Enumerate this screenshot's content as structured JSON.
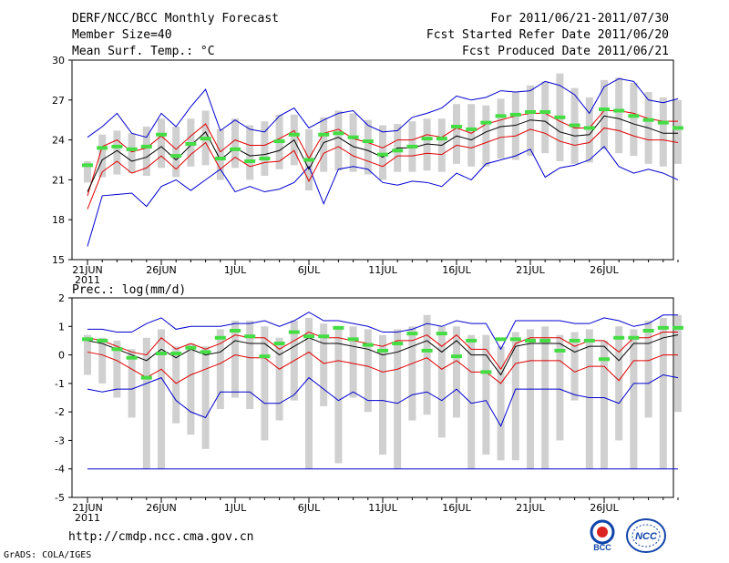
{
  "header": {
    "title": "DERF/NCC/BCC Monthly Forecast",
    "member_size": "Member Size=40",
    "variable": "Mean Surf. Temp.: °C",
    "period": "For 2011/06/21-2011/07/30",
    "started": "Fcst Started Refer Date 2011/06/20",
    "produced": "Fcst Produced Date 2011/06/21"
  },
  "footer": {
    "url": "http://cmdp.ncc.cma.gov.cn",
    "credit": "GrADS: COLA/IGES",
    "logo_left_text": "BCC",
    "logo_right_text": "NCC"
  },
  "colors": {
    "envelope": "#0000d0",
    "spread": "#e00000",
    "mean": "#000000",
    "box": "#d0d0d0",
    "observed": "#44dd44"
  },
  "chart_data": [
    {
      "type": "line",
      "name": "temperature",
      "title": "Mean Surf. Temp.: °C",
      "ylim": [
        15,
        30
      ],
      "yticks": [
        15,
        18,
        21,
        24,
        27,
        30
      ],
      "x_tick_labels": [
        {
          "day": 0,
          "label": "21JUN"
        },
        {
          "day": 5,
          "label": "26JUN"
        },
        {
          "day": 10,
          "label": "1JUL"
        },
        {
          "day": 15,
          "label": "6JUL"
        },
        {
          "day": 20,
          "label": "11JUL"
        },
        {
          "day": 25,
          "label": "16JUL"
        },
        {
          "day": 30,
          "label": "21JUL"
        },
        {
          "day": 35,
          "label": "26JUL"
        }
      ],
      "year_label": "2011",
      "series": [
        {
          "name": "max",
          "values": [
            16,
            19.8,
            19.9,
            20,
            19,
            20.5,
            21,
            20.2,
            21,
            21.8,
            20.1,
            20.5,
            20.1,
            20.3,
            20.8,
            22,
            19.2,
            21.8,
            22,
            21.8,
            20.8,
            20.6,
            20.9,
            20.8,
            20.5,
            21.5,
            21,
            22.2,
            22.5,
            22.8,
            23.3,
            21.2,
            21.9,
            22.1,
            22.5,
            23.5,
            22,
            21.5,
            21.8,
            21.5,
            21
          ]
        },
        {
          "name": "max_top",
          "values": [
            24.2,
            25,
            26,
            24.5,
            24.2,
            26,
            25,
            26.5,
            27.8,
            24.7,
            25.5,
            24.8,
            24.6,
            25.8,
            26.4,
            24.9,
            25.5,
            26,
            26.2,
            25.1,
            24.6,
            24.7,
            25.7,
            26,
            26.4,
            27.3,
            27,
            27.2,
            27.7,
            27.6,
            27.7,
            28.4,
            28.1,
            27.4,
            26,
            28,
            28.6,
            28.4,
            27,
            26.8,
            27.1
          ]
        },
        {
          "name": "upper",
          "values": [
            19.8,
            23.5,
            24,
            23.1,
            23.4,
            24.3,
            23.3,
            24.3,
            25.2,
            23.1,
            24,
            23.6,
            23.6,
            24.1,
            24.7,
            22.6,
            24.5,
            24.8,
            24.1,
            23.8,
            23.4,
            24,
            24,
            24.4,
            24.2,
            24.9,
            24.5,
            25.2,
            25.5,
            25.8,
            26,
            26,
            25.4,
            24.9,
            24.9,
            26.2,
            26.2,
            26,
            25.6,
            25.4,
            25.4
          ]
        },
        {
          "name": "mean",
          "values": [
            20.1,
            22.5,
            23.2,
            22.4,
            22.7,
            23.5,
            22.5,
            23.6,
            24.6,
            22.5,
            23.4,
            22.8,
            22.9,
            23.2,
            24,
            21.8,
            23.8,
            24.2,
            23.5,
            23.2,
            22.7,
            23.4,
            23.4,
            23.7,
            23.6,
            24.3,
            24,
            24.6,
            25,
            25.1,
            25.5,
            25.4,
            24.6,
            24.3,
            24.4,
            25.8,
            25.6,
            25.2,
            24.9,
            24.5,
            24.5
          ]
        },
        {
          "name": "lower",
          "values": [
            18.8,
            21.6,
            22.4,
            21.5,
            21.9,
            22.8,
            21.8,
            22.9,
            23.8,
            21.8,
            22.7,
            22,
            22.3,
            22.4,
            23.2,
            20.9,
            23,
            23.5,
            22.8,
            22.4,
            22,
            22.8,
            22.8,
            23,
            22.9,
            23.6,
            23.4,
            23.8,
            24.2,
            24.3,
            24.8,
            24.5,
            23.9,
            23.6,
            23.8,
            24.9,
            24.7,
            24.3,
            24,
            24,
            23.8
          ]
        },
        {
          "name": "observed",
          "values": [
            22.1,
            23.4,
            23.5,
            23.3,
            23.5,
            24.4,
            22.8,
            23.7,
            24.1,
            22.6,
            23.3,
            22.4,
            22.6,
            23.9,
            24.4,
            22.5,
            24.4,
            24.5,
            24.2,
            23.9,
            22.9,
            23.2,
            23.5,
            24.1,
            24.1,
            25,
            24.8,
            25.3,
            25.8,
            25.9,
            26.1,
            26.1,
            25.7,
            25.1,
            24.9,
            26.3,
            26.2,
            25.8,
            25.5,
            25.3,
            24.9
          ]
        }
      ],
      "boxes": {
        "low": [
          20.8,
          21.2,
          21.4,
          21.5,
          21.3,
          21.9,
          21.2,
          22,
          22.1,
          21,
          21.9,
          21,
          21.3,
          21.8,
          22.1,
          20.2,
          21.6,
          21.7,
          21.6,
          21.4,
          21,
          21.6,
          21.6,
          21.7,
          21.6,
          22.2,
          22,
          22,
          22.6,
          22.5,
          22.8,
          23,
          22.4,
          22.2,
          22.3,
          23.3,
          23,
          22.8,
          22.2,
          22,
          22.2
        ],
        "high": [
          22.4,
          24.4,
          24.7,
          24.5,
          25,
          25.6,
          25,
          25.6,
          26.2,
          24.8,
          25.6,
          25.1,
          25.4,
          25.9,
          25.9,
          24.8,
          25.7,
          26.2,
          26,
          25.5,
          25.1,
          25.2,
          25.4,
          25.6,
          25.6,
          26.7,
          26.7,
          26.6,
          27.1,
          27.6,
          28.1,
          28.4,
          29,
          27.9,
          27.2,
          28.5,
          28.7,
          28.3,
          27.6,
          27.2,
          27
        ]
      }
    },
    {
      "type": "line",
      "name": "precipitation",
      "title": "Prec.: log(mm/d)",
      "ylim": [
        -5,
        2
      ],
      "yticks": [
        -5,
        -4,
        -3,
        -2,
        -1,
        0,
        1,
        2
      ],
      "x_tick_labels": [
        {
          "day": 0,
          "label": "21JUN"
        },
        {
          "day": 5,
          "label": "26JUN"
        },
        {
          "day": 10,
          "label": "1JUL"
        },
        {
          "day": 15,
          "label": "6JUL"
        },
        {
          "day": 20,
          "label": "11JUL"
        },
        {
          "day": 25,
          "label": "16JUL"
        },
        {
          "day": 30,
          "label": "21JUL"
        },
        {
          "day": 35,
          "label": "26JUL"
        }
      ],
      "year_label": "2011",
      "series": [
        {
          "name": "max",
          "values": [
            0.9,
            0.9,
            0.8,
            0.8,
            1.1,
            1.3,
            0.9,
            1,
            1,
            1,
            1.1,
            1.1,
            1.2,
            1,
            1.2,
            1.5,
            1.2,
            1.2,
            1.1,
            1,
            0.8,
            0.8,
            0.9,
            1.1,
            1,
            1.2,
            1.1,
            1.1,
            0.2,
            1.2,
            1.2,
            1.2,
            1.2,
            1.1,
            1.1,
            1.3,
            1.2,
            1,
            1.1,
            1.4,
            1.4
          ]
        },
        {
          "name": "upper",
          "values": [
            0.6,
            0.5,
            0.3,
            0.1,
            0,
            0.6,
            0.2,
            0.4,
            0.2,
            0.4,
            0.7,
            0.6,
            0.6,
            0.2,
            0.5,
            0.8,
            0.6,
            0.6,
            0.5,
            0.4,
            0.3,
            0.5,
            0.5,
            0.7,
            0.3,
            0.7,
            0.2,
            0.2,
            -0.5,
            0.4,
            0.6,
            0.6,
            0.6,
            0.3,
            0.5,
            0.5,
            0.1,
            0.6,
            0.6,
            0.8,
            0.8
          ]
        },
        {
          "name": "mean",
          "values": [
            0.5,
            0.4,
            0.2,
            0,
            -0.2,
            0.2,
            -0.1,
            0.2,
            0,
            0.1,
            0.5,
            0.4,
            0.4,
            0,
            0.3,
            0.6,
            0.4,
            0.4,
            0.3,
            0.2,
            0,
            0.1,
            0.3,
            0.5,
            0.1,
            0.5,
            0,
            0,
            -0.7,
            0.3,
            0.4,
            0.4,
            0.4,
            0.1,
            0.3,
            0.3,
            -0.2,
            0.4,
            0.4,
            0.6,
            0.7
          ]
        },
        {
          "name": "lower",
          "values": [
            0.1,
            0,
            -0.2,
            -0.5,
            -0.8,
            -0.5,
            -1,
            -0.7,
            -0.5,
            -0.3,
            0,
            -0.1,
            -0.1,
            -0.5,
            -0.2,
            0.1,
            -0.3,
            -0.2,
            -0.3,
            -0.4,
            -0.6,
            -0.5,
            -0.3,
            -0.1,
            -0.5,
            -0.2,
            -0.6,
            -0.6,
            -1,
            -0.3,
            -0.2,
            -0.2,
            -0.2,
            -0.6,
            -0.4,
            -0.4,
            -0.9,
            -0.2,
            -0.2,
            0,
            0
          ]
        },
        {
          "name": "min",
          "values": [
            -1.2,
            -1.3,
            -1.2,
            -1.2,
            -1,
            -0.8,
            -1.6,
            -2,
            -2.2,
            -1.3,
            -1.3,
            -1.3,
            -1.7,
            -1.7,
            -1.4,
            -0.8,
            -1.2,
            -1.6,
            -1.3,
            -1.6,
            -1.6,
            -1.7,
            -1.4,
            -1.3,
            -1.6,
            -1.2,
            -1.7,
            -1.6,
            -2.5,
            -1.2,
            -1.2,
            -1.2,
            -1.2,
            -1.4,
            -1.5,
            -1.5,
            -1.7,
            -1,
            -1,
            -0.7,
            -0.8
          ]
        },
        {
          "name": "floor",
          "values": [
            -4,
            -4,
            -4,
            -4,
            -4,
            -4,
            -4,
            -4,
            -4,
            -4,
            -4,
            -4,
            -4,
            -4,
            -4,
            -4,
            -4,
            -4,
            -4,
            -4,
            -4,
            -4,
            -4,
            -4,
            -4,
            -4,
            -4,
            -4,
            -4,
            -4,
            -4,
            -4,
            -4,
            -4,
            -4,
            -4,
            -4,
            -4,
            -4,
            -4,
            -4
          ]
        },
        {
          "name": "observed",
          "values": [
            0.55,
            0.5,
            0.2,
            -0.1,
            -0.8,
            0.05,
            0.05,
            0.25,
            0.1,
            0.6,
            0.85,
            0.65,
            -0.05,
            0.4,
            0.8,
            0.65,
            0.65,
            0.95,
            0.55,
            0.35,
            0.15,
            0.4,
            0.75,
            0.15,
            0.75,
            -0.05,
            0.5,
            -0.6,
            0.55,
            0.55,
            0.5,
            0.5,
            0.15,
            0.5,
            0.5,
            -0.15,
            0.6,
            0.6,
            0.85,
            0.95,
            0.95
          ]
        }
      ],
      "boxes": {
        "low": [
          -0.7,
          -1,
          -1.5,
          -2.2,
          -4,
          -4,
          -2.4,
          -2.8,
          -3.3,
          -1.9,
          -1.5,
          -1.9,
          -3,
          -2.3,
          -1.6,
          -4,
          -1.8,
          -3.8,
          -1.5,
          -2,
          -3.5,
          -4,
          -2.3,
          -2.1,
          -2.9,
          -2.2,
          -4,
          -3.5,
          -3.7,
          -3.7,
          -4,
          -4,
          -3,
          -1.6,
          -4,
          -4,
          -3,
          -4,
          -2.2,
          -4,
          -2
        ],
        "high": [
          0.7,
          0.6,
          0.5,
          0.2,
          0.6,
          0.9,
          0.3,
          0.4,
          0.3,
          0.9,
          1.2,
          1.2,
          1,
          0.6,
          1.2,
          1.3,
          1.1,
          0.9,
          1,
          0.9,
          0.7,
          0.9,
          1,
          1.4,
          1,
          1,
          0.7,
          0.7,
          0.3,
          0.8,
          0.9,
          1,
          0.7,
          0.8,
          0.9,
          0.5,
          1,
          0.9,
          1.2,
          1.3,
          1.4
        ]
      }
    }
  ]
}
